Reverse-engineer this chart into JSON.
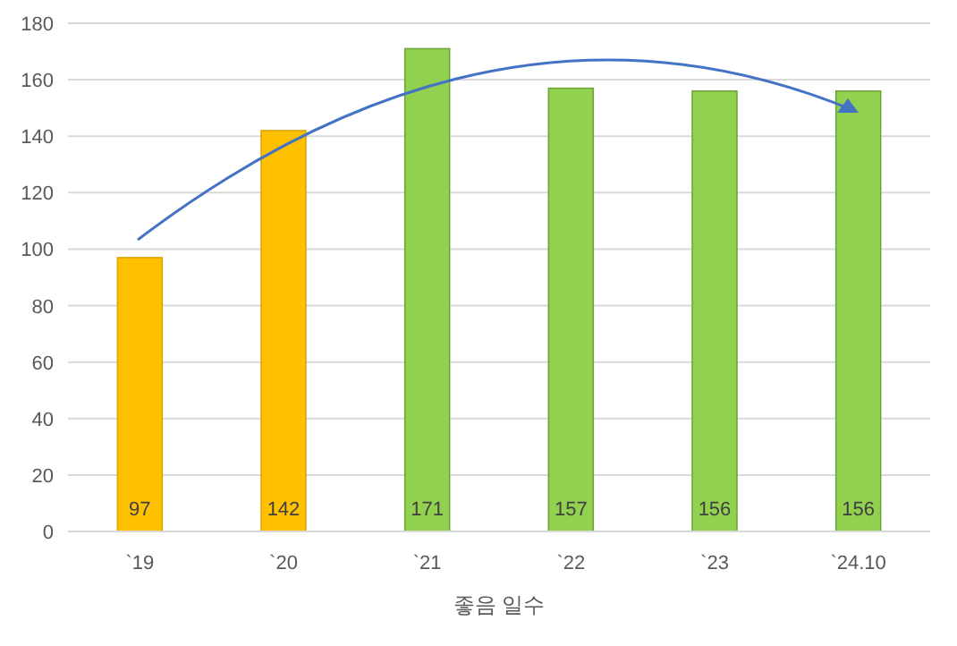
{
  "chart_data": {
    "type": "bar",
    "xlabel": "좋음 일수",
    "categories": [
      "`19",
      "`20",
      "`21",
      "`22",
      "`23",
      "`24.10"
    ],
    "values": [
      97,
      142,
      171,
      157,
      156,
      156
    ],
    "colors": [
      "#ffc000",
      "#ffc000",
      "#92d050",
      "#92d050",
      "#92d050",
      "#92d050"
    ],
    "ylim": [
      0,
      180
    ],
    "yticks": [
      0,
      20,
      40,
      60,
      80,
      100,
      120,
      140,
      160,
      180
    ],
    "grid": "y",
    "data_labels": true
  }
}
